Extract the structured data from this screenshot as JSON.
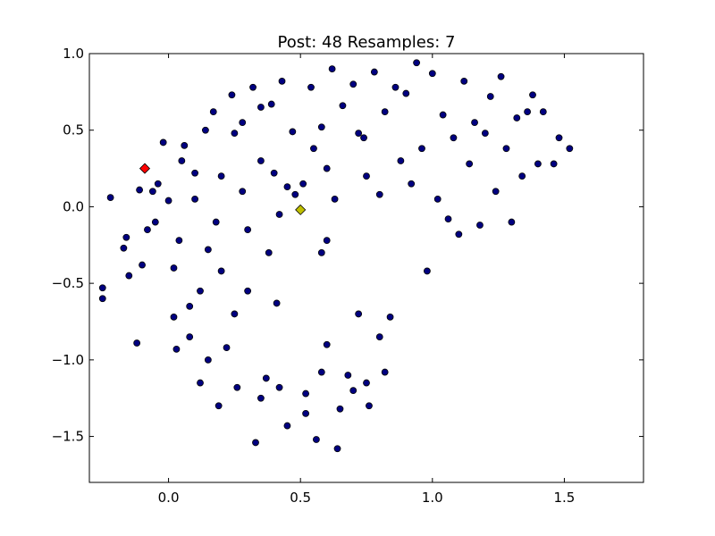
{
  "chart_data": {
    "type": "scatter",
    "title": "Post: 48 Resamples: 7",
    "xlabel": "",
    "ylabel": "",
    "xlim": [
      -0.3,
      1.8
    ],
    "ylim": [
      -1.8,
      1.0
    ],
    "xticks": [
      0.0,
      0.5,
      1.0,
      1.5
    ],
    "yticks": [
      1.0,
      0.5,
      0.0,
      -0.5,
      -1.0,
      -1.5
    ],
    "xtick_labels": [
      "0.0",
      "0.5",
      "1.0",
      "1.5"
    ],
    "ytick_labels": [
      "1.0",
      "0.5",
      "0.0",
      "−0.5",
      "−1.0",
      "−1.5"
    ],
    "grid": false,
    "series": [
      {
        "marker": "circle",
        "color": "#000080",
        "points": [
          [
            -0.25,
            -0.53
          ],
          [
            -0.25,
            -0.6
          ],
          [
            -0.22,
            0.06
          ],
          [
            -0.17,
            -0.27
          ],
          [
            -0.16,
            -0.2
          ],
          [
            -0.15,
            -0.45
          ],
          [
            -0.12,
            -0.89
          ],
          [
            -0.11,
            0.11
          ],
          [
            -0.1,
            -0.38
          ],
          [
            -0.08,
            -0.15
          ],
          [
            -0.06,
            0.1
          ],
          [
            -0.04,
            0.15
          ],
          [
            -0.02,
            0.42
          ],
          [
            0.0,
            0.04
          ],
          [
            0.02,
            -0.72
          ],
          [
            0.03,
            -0.93
          ],
          [
            0.04,
            -0.22
          ],
          [
            0.06,
            0.4
          ],
          [
            0.08,
            -0.85
          ],
          [
            0.1,
            0.22
          ],
          [
            0.12,
            -1.15
          ],
          [
            0.14,
            0.5
          ],
          [
            0.15,
            -0.28
          ],
          [
            0.17,
            0.62
          ],
          [
            0.19,
            -1.3
          ],
          [
            0.2,
            0.2
          ],
          [
            0.22,
            -0.92
          ],
          [
            0.24,
            0.73
          ],
          [
            0.26,
            -1.18
          ],
          [
            0.28,
            0.55
          ],
          [
            0.3,
            -0.55
          ],
          [
            0.32,
            0.78
          ],
          [
            0.33,
            -1.54
          ],
          [
            0.35,
            0.3
          ],
          [
            0.37,
            -1.12
          ],
          [
            0.39,
            0.67
          ],
          [
            0.41,
            -0.63
          ],
          [
            0.43,
            0.82
          ],
          [
            0.45,
            -1.43
          ],
          [
            0.47,
            0.49
          ],
          [
            0.5,
            -0.02
          ],
          [
            0.51,
            0.15
          ],
          [
            0.52,
            -1.35
          ],
          [
            0.54,
            0.78
          ],
          [
            0.56,
            -1.52
          ],
          [
            0.58,
            0.52
          ],
          [
            0.6,
            -0.9
          ],
          [
            0.62,
            0.9
          ],
          [
            0.64,
            -1.58
          ],
          [
            0.66,
            0.66
          ],
          [
            0.68,
            -1.1
          ],
          [
            0.7,
            0.8
          ],
          [
            0.72,
            -0.7
          ],
          [
            0.74,
            0.45
          ],
          [
            0.76,
            -1.3
          ],
          [
            0.78,
            0.88
          ],
          [
            0.8,
            -0.85
          ],
          [
            0.82,
            0.62
          ],
          [
            0.84,
            -0.72
          ],
          [
            0.86,
            0.78
          ],
          [
            0.88,
            0.3
          ],
          [
            0.9,
            0.74
          ],
          [
            0.92,
            0.15
          ],
          [
            0.94,
            0.94
          ],
          [
            0.96,
            0.38
          ],
          [
            0.98,
            -0.42
          ],
          [
            1.0,
            0.87
          ],
          [
            1.02,
            0.05
          ],
          [
            1.04,
            0.6
          ],
          [
            1.06,
            -0.08
          ],
          [
            1.08,
            0.45
          ],
          [
            1.1,
            -0.18
          ],
          [
            1.12,
            0.82
          ],
          [
            1.14,
            0.28
          ],
          [
            1.16,
            0.55
          ],
          [
            1.18,
            -0.12
          ],
          [
            1.2,
            0.48
          ],
          [
            1.22,
            0.72
          ],
          [
            1.24,
            0.1
          ],
          [
            1.26,
            0.85
          ],
          [
            1.28,
            0.38
          ],
          [
            1.3,
            -0.1
          ],
          [
            1.32,
            0.58
          ],
          [
            1.34,
            0.2
          ],
          [
            1.36,
            0.62
          ],
          [
            1.38,
            0.73
          ],
          [
            1.4,
            0.28
          ],
          [
            1.42,
            0.62
          ],
          [
            1.46,
            0.28
          ],
          [
            1.48,
            0.45
          ],
          [
            1.52,
            0.38
          ],
          [
            0.35,
            0.65
          ],
          [
            0.4,
            0.22
          ],
          [
            0.25,
            0.48
          ],
          [
            0.28,
            0.1
          ],
          [
            0.45,
            0.13
          ],
          [
            0.48,
            0.08
          ],
          [
            0.6,
            0.25
          ],
          [
            0.63,
            0.05
          ],
          [
            0.55,
            0.38
          ],
          [
            0.72,
            0.48
          ],
          [
            0.75,
            0.2
          ],
          [
            0.8,
            0.08
          ],
          [
            0.42,
            -0.05
          ],
          [
            0.3,
            -0.15
          ],
          [
            0.38,
            -0.3
          ],
          [
            0.58,
            -0.3
          ],
          [
            0.6,
            -0.22
          ],
          [
            0.18,
            -0.1
          ],
          [
            0.2,
            -0.42
          ],
          [
            0.25,
            -0.7
          ],
          [
            0.12,
            -0.55
          ],
          [
            0.08,
            -0.65
          ],
          [
            0.15,
            -1.0
          ],
          [
            0.05,
            0.3
          ],
          [
            0.1,
            0.05
          ],
          [
            0.02,
            -0.4
          ],
          [
            -0.05,
            -0.1
          ],
          [
            0.35,
            -1.25
          ],
          [
            0.42,
            -1.18
          ],
          [
            0.52,
            -1.22
          ],
          [
            0.58,
            -1.08
          ],
          [
            0.65,
            -1.32
          ],
          [
            0.7,
            -1.2
          ],
          [
            0.75,
            -1.15
          ],
          [
            0.82,
            -1.08
          ]
        ]
      },
      {
        "marker": "diamond",
        "color": "#ff0000",
        "points": [
          [
            -0.09,
            0.25
          ]
        ]
      },
      {
        "marker": "diamond",
        "color": "#bfbf00",
        "points": [
          [
            0.5,
            -0.02
          ]
        ]
      }
    ]
  }
}
